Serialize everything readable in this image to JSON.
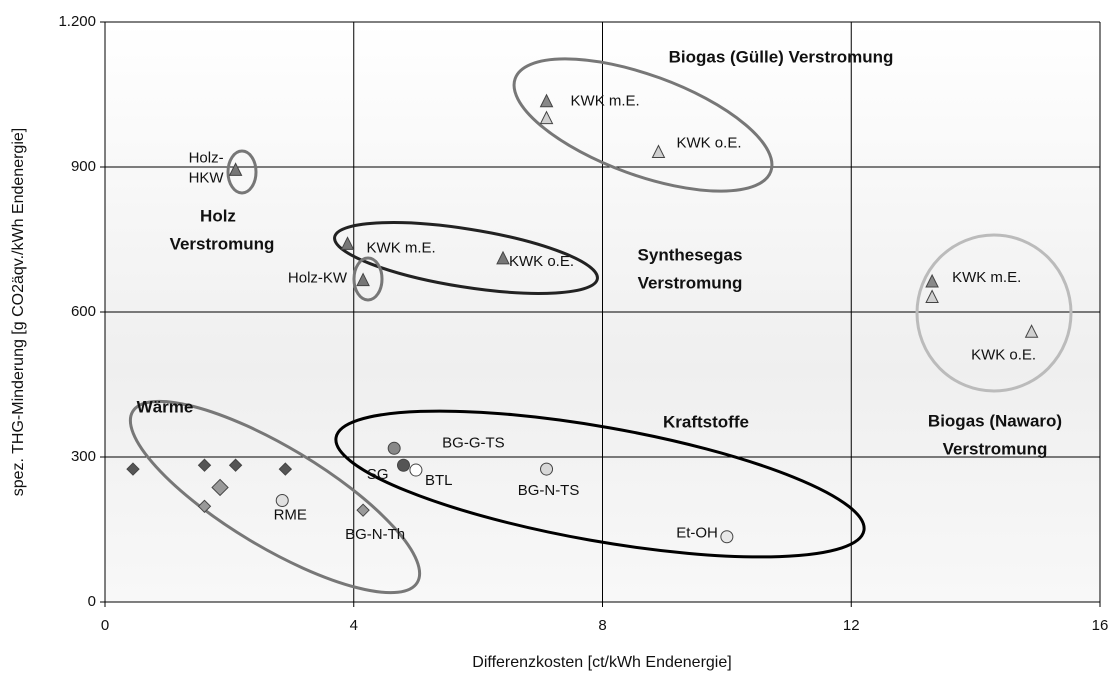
{
  "chart_data": {
    "type": "scatter",
    "xlabel": "Differenzkosten [ct/kWh Endenergie]",
    "ylabel": "spez. THG-Minderung [g CO2äqv./kWh Endenergie]",
    "xlim": [
      0,
      16
    ],
    "ylim": [
      0,
      1200
    ],
    "xticks": [
      0,
      4,
      8,
      12,
      16
    ],
    "yticks": [
      0,
      300,
      600,
      900,
      {
        "value": 1200,
        "label": "1.200"
      }
    ],
    "grid": true,
    "points": [
      {
        "x": 2.1,
        "y": 893,
        "marker": "triangle",
        "color": "#777777",
        "label": [
          "Holz-",
          "HKW"
        ]
      },
      {
        "x": 3.9,
        "y": 740,
        "marker": "triangle",
        "color": "#777777",
        "label": [
          "KWK m.E."
        ]
      },
      {
        "x": 4.15,
        "y": 665,
        "marker": "triangle",
        "color": "#777777",
        "label": [
          "Holz-KW"
        ]
      },
      {
        "x": 6.4,
        "y": 710,
        "marker": "triangle",
        "color": "#777777",
        "label": [
          "KWK o.E."
        ]
      },
      {
        "x": 7.1,
        "y": 1035,
        "marker": "triangle",
        "color": "#888888",
        "label": [
          "KWK m.E."
        ]
      },
      {
        "x": 7.1,
        "y": 1000,
        "marker": "triangle",
        "color": "#d0d0d0"
      },
      {
        "x": 8.9,
        "y": 930,
        "marker": "triangle",
        "color": "#d0d0d0",
        "label": [
          "KWK o.E."
        ]
      },
      {
        "x": 13.3,
        "y": 662,
        "marker": "triangle",
        "color": "#888888",
        "label": [
          "KWK m.E."
        ]
      },
      {
        "x": 13.3,
        "y": 630,
        "marker": "triangle",
        "color": "#d0d0d0"
      },
      {
        "x": 14.9,
        "y": 558,
        "marker": "triangle",
        "color": "#d0d0d0",
        "label": [
          "KWK o.E."
        ]
      },
      {
        "x": 0.45,
        "y": 275,
        "marker": "diamond",
        "color": "#555555"
      },
      {
        "x": 1.6,
        "y": 283,
        "marker": "diamond",
        "color": "#555555"
      },
      {
        "x": 2.1,
        "y": 283,
        "marker": "diamond",
        "color": "#555555"
      },
      {
        "x": 2.9,
        "y": 275,
        "marker": "diamond",
        "color": "#555555"
      },
      {
        "x": 1.85,
        "y": 237,
        "marker": "diamond",
        "color": "#999999"
      },
      {
        "x": 1.6,
        "y": 198,
        "marker": "diamond",
        "color": "#999999"
      },
      {
        "x": 2.85,
        "y": 210,
        "marker": "circle",
        "color": "#e0e0e0",
        "label": [
          "RME"
        ]
      },
      {
        "x": 4.15,
        "y": 190,
        "marker": "diamond",
        "color": "#999999",
        "label": [
          "BG-N-Th"
        ]
      },
      {
        "x": 4.65,
        "y": 318,
        "marker": "circle",
        "color": "#888888",
        "label": [
          "BG-G-TS"
        ]
      },
      {
        "x": 4.8,
        "y": 283,
        "marker": "circle",
        "color": "#555555",
        "label": [
          "SG"
        ]
      },
      {
        "x": 5.0,
        "y": 273,
        "marker": "circle",
        "color": "#ffffff",
        "label": [
          "BTL"
        ]
      },
      {
        "x": 7.1,
        "y": 275,
        "marker": "circle",
        "color": "#d8d8d8",
        "label": [
          "BG-N-TS"
        ]
      },
      {
        "x": 10.0,
        "y": 135,
        "marker": "circle",
        "color": "#e8e8e8",
        "label": [
          "Et-OH"
        ]
      }
    ],
    "annotations": [
      [
        "Biogas (Gülle) Verstromung"
      ],
      [
        "Holz",
        "Verstromung"
      ],
      [
        "Synthesegas",
        "Verstromung"
      ],
      [
        "Wärme"
      ],
      [
        "Kraftstoffe"
      ],
      [
        "Biogas (Nawaro)",
        "Verstromung"
      ]
    ]
  }
}
